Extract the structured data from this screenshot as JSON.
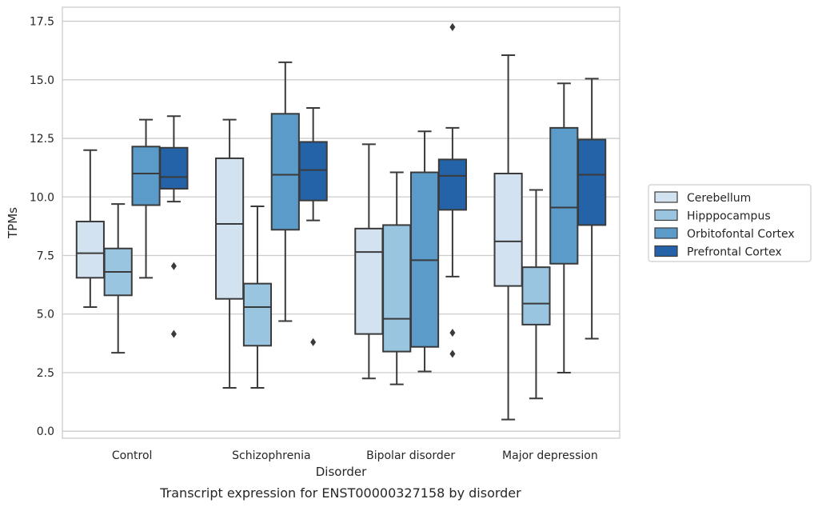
{
  "caption": "Transcript expression for ENST00000327158 by disorder",
  "chart_data": {
    "type": "boxplot",
    "xlabel": "Disorder",
    "ylabel": "TPMs",
    "ylim": [
      -0.3,
      18.1
    ],
    "yticks": [
      0.0,
      2.5,
      5.0,
      7.5,
      10.0,
      12.5,
      15.0,
      17.5
    ],
    "ytick_labels": [
      "0.0",
      "2.5",
      "5.0",
      "7.5",
      "10.0",
      "12.5",
      "15.0",
      "17.5"
    ],
    "grid": "horizontal",
    "legend_position": "right",
    "categories": [
      "Control",
      "Schizophrenia",
      "Bipolar disorder",
      "Major depression"
    ],
    "series": [
      {
        "name": "Cerebellum",
        "color": "#d2e2f1",
        "boxes": [
          {
            "whisker_low": 5.3,
            "q1": 6.55,
            "median": 7.6,
            "q3": 8.95,
            "whisker_high": 12.0,
            "outliers": []
          },
          {
            "whisker_low": 1.85,
            "q1": 5.65,
            "median": 8.85,
            "q3": 11.65,
            "whisker_high": 13.3,
            "outliers": []
          },
          {
            "whisker_low": 2.25,
            "q1": 4.15,
            "median": 7.65,
            "q3": 8.65,
            "whisker_high": 12.25,
            "outliers": []
          },
          {
            "whisker_low": 0.5,
            "q1": 6.2,
            "median": 8.1,
            "q3": 11.0,
            "whisker_high": 16.05,
            "outliers": []
          }
        ]
      },
      {
        "name": "Hipppocampus",
        "color": "#9ac5e0",
        "boxes": [
          {
            "whisker_low": 3.35,
            "q1": 5.8,
            "median": 6.8,
            "q3": 7.8,
            "whisker_high": 9.7,
            "outliers": []
          },
          {
            "whisker_low": 1.85,
            "q1": 3.65,
            "median": 5.3,
            "q3": 6.3,
            "whisker_high": 9.6,
            "outliers": []
          },
          {
            "whisker_low": 2.0,
            "q1": 3.4,
            "median": 4.8,
            "q3": 8.8,
            "whisker_high": 11.05,
            "outliers": []
          },
          {
            "whisker_low": 1.4,
            "q1": 4.55,
            "median": 5.45,
            "q3": 7.0,
            "whisker_high": 10.3,
            "outliers": []
          }
        ]
      },
      {
        "name": "Orbitofontal Cortex",
        "color": "#5a9bc9",
        "boxes": [
          {
            "whisker_low": 6.55,
            "q1": 9.65,
            "median": 11.0,
            "q3": 12.15,
            "whisker_high": 13.3,
            "outliers": []
          },
          {
            "whisker_low": 4.7,
            "q1": 8.6,
            "median": 10.95,
            "q3": 13.55,
            "whisker_high": 15.75,
            "outliers": []
          },
          {
            "whisker_low": 2.55,
            "q1": 3.6,
            "median": 7.3,
            "q3": 11.05,
            "whisker_high": 12.8,
            "outliers": []
          },
          {
            "whisker_low": 2.5,
            "q1": 7.15,
            "median": 9.55,
            "q3": 12.95,
            "whisker_high": 14.85,
            "outliers": []
          }
        ]
      },
      {
        "name": "Prefrontal Cortex",
        "color": "#2563a8",
        "boxes": [
          {
            "whisker_low": 9.8,
            "q1": 10.35,
            "median": 10.85,
            "q3": 12.1,
            "whisker_high": 13.45,
            "outliers": [
              7.05,
              4.15
            ]
          },
          {
            "whisker_low": 9.0,
            "q1": 9.85,
            "median": 11.15,
            "q3": 12.35,
            "whisker_high": 13.8,
            "outliers": [
              3.8
            ]
          },
          {
            "whisker_low": 6.6,
            "q1": 9.45,
            "median": 10.9,
            "q3": 11.6,
            "whisker_high": 12.95,
            "outliers": [
              17.25,
              4.2,
              3.3
            ]
          },
          {
            "whisker_low": 3.95,
            "q1": 8.8,
            "median": 10.95,
            "q3": 12.45,
            "whisker_high": 15.05,
            "outliers": []
          }
        ]
      }
    ]
  }
}
